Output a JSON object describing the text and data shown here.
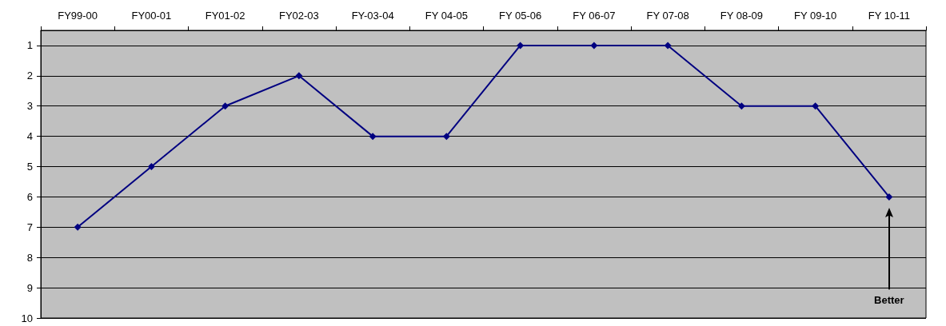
{
  "chart_data": {
    "type": "line",
    "categories": [
      "FY99-00",
      "FY00-01",
      "FY01-02",
      "FY02-03",
      "FY-03-04",
      "FY 04-05",
      "FY 05-06",
      "FY 06-07",
      "FY 07-08",
      "FY 08-09",
      "FY 09-10",
      "FY 10-11"
    ],
    "series": [
      {
        "color": "#000080",
        "values": [
          7,
          5,
          3,
          2,
          4,
          4,
          1,
          1,
          1,
          3,
          3,
          6
        ]
      }
    ],
    "ylim": [
      10,
      0.5
    ],
    "yticks": [
      1,
      2,
      3,
      4,
      5,
      6,
      7,
      8,
      9,
      10
    ],
    "grid": "y",
    "marker": "diamond",
    "line_style": "solid",
    "annotations": [
      "Better"
    ]
  }
}
